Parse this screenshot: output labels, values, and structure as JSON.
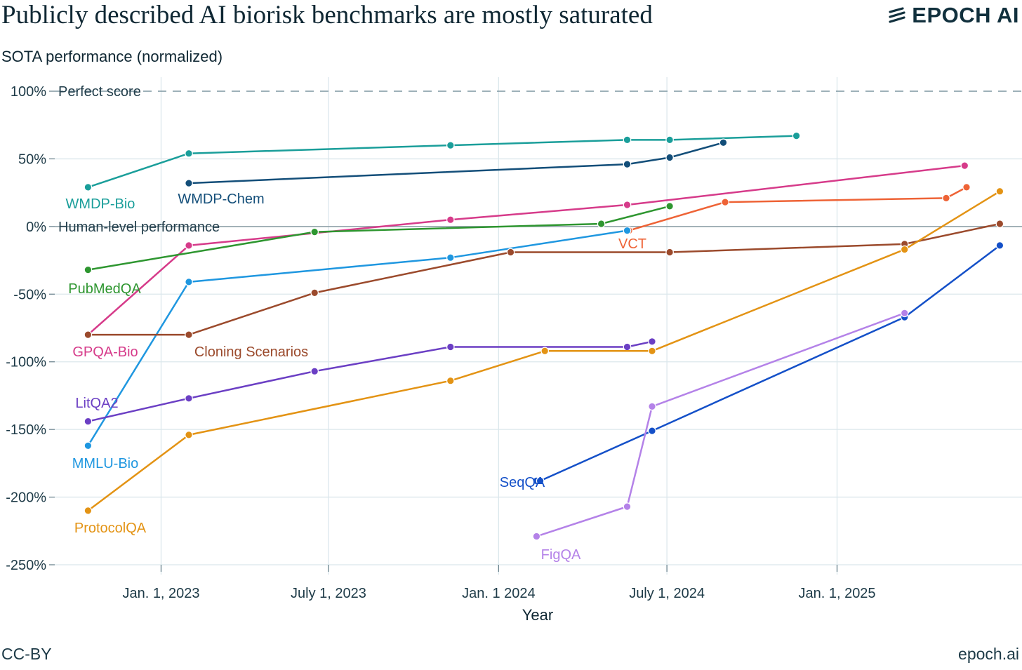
{
  "header": {
    "title": "Publicly described AI biorisk benchmarks are mostly saturated",
    "brand": "EPOCH AI",
    "subtitle": "SOTA performance (normalized)"
  },
  "footer": {
    "license": "CC-BY",
    "site": "epoch.ai"
  },
  "chart_data": {
    "type": "line",
    "title": "Publicly described AI biorisk benchmarks are mostly saturated",
    "ylabel": "SOTA performance (normalized)",
    "xlabel": "Year",
    "xlim": [
      "2022-09-08",
      "2025-07-20"
    ],
    "ylim": [
      -250,
      100
    ],
    "x_ticks": [
      {
        "date": "2023-01-01",
        "label": "Jan. 1, 2023"
      },
      {
        "date": "2023-07-01",
        "label": "July 1, 2023"
      },
      {
        "date": "2024-01-01",
        "label": "Jan. 1 2024"
      },
      {
        "date": "2024-07-01",
        "label": "July 1, 2024"
      },
      {
        "date": "2025-01-01",
        "label": "Jan. 1, 2025"
      }
    ],
    "y_ticks": [
      {
        "value": 100,
        "label": "100%"
      },
      {
        "value": 50,
        "label": "50%"
      },
      {
        "value": 0,
        "label": "0%"
      },
      {
        "value": -50,
        "label": "-50%"
      },
      {
        "value": -100,
        "label": "-100%"
      },
      {
        "value": -150,
        "label": "-150%"
      },
      {
        "value": -200,
        "label": "-200%"
      },
      {
        "value": -250,
        "label": "-250%"
      }
    ],
    "grid": true,
    "reference_lines": [
      {
        "value": 100,
        "label": "Perfect score",
        "style": "dashed"
      },
      {
        "value": 0,
        "label": "Human-level performance",
        "style": "solid"
      }
    ],
    "series": [
      {
        "name": "WMDP-Bio",
        "color": "#1a9e9a",
        "x": [
          "2022-10-14",
          "2023-01-31",
          "2023-11-10",
          "2024-05-19",
          "2024-07-04",
          "2024-11-18"
        ],
        "y": [
          29,
          54,
          60,
          64,
          64,
          67
        ]
      },
      {
        "name": "WMDP-Chem",
        "color": "#134e79",
        "x": [
          "2023-01-31",
          "2024-05-19",
          "2024-07-04",
          "2024-08-31"
        ],
        "y": [
          32,
          46,
          51,
          62
        ]
      },
      {
        "name": "GPQA-Bio",
        "color": "#d63b8a",
        "x": [
          "2022-10-14",
          "2023-01-31",
          "2023-11-10",
          "2024-05-19",
          "2025-05-19"
        ],
        "y": [
          -80,
          -14,
          5,
          16,
          45
        ]
      },
      {
        "name": "PubMedQA",
        "color": "#2e9630",
        "x": [
          "2022-10-14",
          "2023-06-16",
          "2024-04-21",
          "2024-07-04"
        ],
        "y": [
          -32,
          -4,
          2,
          15
        ]
      },
      {
        "name": "VCT",
        "color": "#ee6336",
        "x": [
          "2024-05-21",
          "2024-09-02",
          "2025-04-29",
          "2025-05-21"
        ],
        "y": [
          -3,
          18,
          21,
          29
        ]
      },
      {
        "name": "MMLU-Bio",
        "color": "#1f97e0",
        "x": [
          "2022-10-14",
          "2023-01-31",
          "2023-11-10",
          "2024-05-19"
        ],
        "y": [
          -162,
          -41,
          -23,
          -3
        ]
      },
      {
        "name": "Cloning Scenarios",
        "color": "#9b4a2c",
        "x": [
          "2022-10-14",
          "2023-01-31",
          "2023-06-16",
          "2024-01-14",
          "2024-07-04",
          "2025-03-15",
          "2025-06-26"
        ],
        "y": [
          -80,
          -80,
          -49,
          -19,
          -19,
          -13,
          2
        ]
      },
      {
        "name": "LitQA2",
        "color": "#6b3fc4",
        "x": [
          "2022-10-14",
          "2023-01-31",
          "2023-06-16",
          "2023-11-10",
          "2024-05-19",
          "2024-06-15"
        ],
        "y": [
          -144,
          -127,
          -107,
          -89,
          -89,
          -85
        ]
      },
      {
        "name": "ProtocolQA",
        "color": "#e39314",
        "x": [
          "2022-10-14",
          "2023-01-31",
          "2023-11-10",
          "2024-02-20",
          "2024-06-15",
          "2025-03-15",
          "2025-06-26"
        ],
        "y": [
          -210,
          -154,
          -114,
          -92,
          -92,
          -17,
          26
        ]
      },
      {
        "name": "SeqQA",
        "color": "#1450c8",
        "x": [
          "2024-02-11",
          "2024-02-15",
          "2024-06-15",
          "2025-03-15",
          "2025-06-26"
        ],
        "y": [
          -188,
          -188,
          -151,
          -67,
          -14
        ]
      },
      {
        "name": "FigQA",
        "color": "#b482e8",
        "x": [
          "2024-02-11",
          "2024-05-19",
          "2024-06-15",
          "2025-03-15"
        ],
        "y": [
          -229,
          -207,
          -133,
          -64
        ]
      }
    ]
  }
}
